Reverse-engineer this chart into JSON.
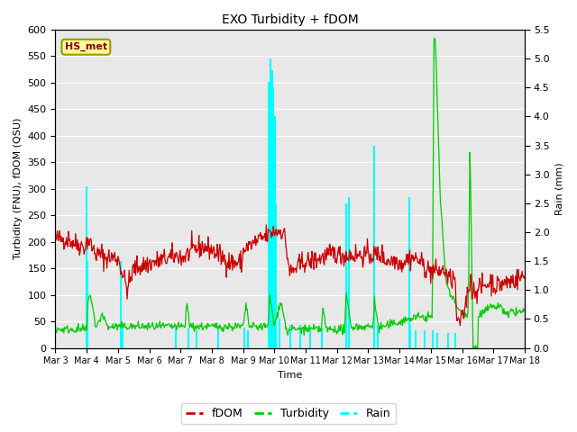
{
  "title": "EXO Turbidity + fDOM",
  "xlabel": "Time",
  "ylabel_left": "Turbidity (FNU), fDOM (QSU)",
  "ylabel_right": "Rain (mm)",
  "ylim_left": [
    0,
    600
  ],
  "ylim_right": [
    0,
    5.5
  ],
  "yticks_left": [
    0,
    50,
    100,
    150,
    200,
    250,
    300,
    350,
    400,
    450,
    500,
    550,
    600
  ],
  "yticks_right": [
    0.0,
    0.5,
    1.0,
    1.5,
    2.0,
    2.5,
    3.0,
    3.5,
    4.0,
    4.5,
    5.0,
    5.5
  ],
  "xtick_labels": [
    "Mar 3",
    "Mar 4",
    "Mar 5",
    "Mar 6",
    "Mar 7",
    "Mar 8",
    "Mar 9",
    "Mar 10",
    "Mar 11",
    "Mar 12",
    "Mar 13",
    "Mar 14",
    "Mar 15",
    "Mar 16",
    "Mar 17",
    "Mar 18"
  ],
  "bg_color": "#e8e8e8",
  "fdom_color": "#cc0000",
  "turbidity_color": "#00cc00",
  "rain_color": "#00ffff",
  "legend_label_fdom": "fDOM",
  "legend_label_turbidity": "Turbidity",
  "legend_label_rain": "Rain",
  "station_label": "HS_met",
  "n_points": 720,
  "rain_scale": 109.09
}
